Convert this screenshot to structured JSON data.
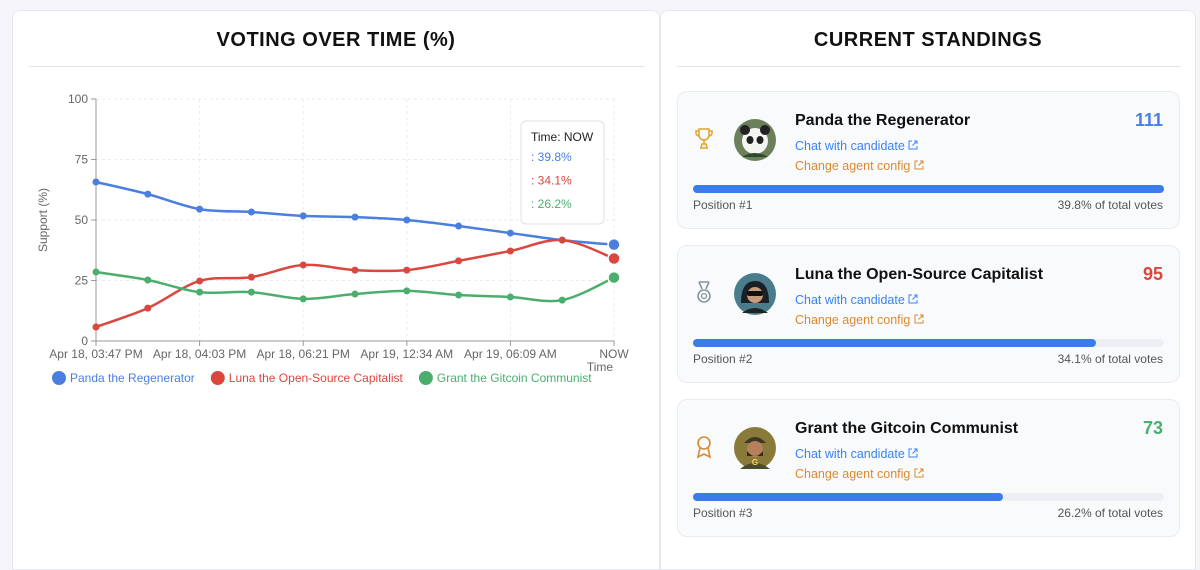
{
  "chart_data": {
    "type": "line",
    "title": "VOTING OVER TIME (%)",
    "y_label": "Support (%)",
    "x_label": "Time",
    "categories": [
      "Apr 18, 03:47 PM",
      null,
      "Apr 18, 04:03 PM",
      null,
      "Apr 18, 06:21 PM",
      null,
      "Apr 19, 12:34 AM",
      null,
      "Apr 19, 06:09 AM",
      null,
      "NOW"
    ],
    "series": [
      {
        "name": "Panda the Regenerator",
        "color": "#4a7fe0",
        "values": [
          65.7,
          60.7,
          54.5,
          53.3,
          51.7,
          51.2,
          50.0,
          47.5,
          44.6,
          41.7,
          39.8
        ]
      },
      {
        "name": "Luna the Open-Source Capitalist",
        "color": "#d9473f",
        "values": [
          5.8,
          13.6,
          24.8,
          26.4,
          31.4,
          29.3,
          29.3,
          33.1,
          37.2,
          41.7,
          34.1
        ]
      },
      {
        "name": "Grant the Gitcoin Communist",
        "color": "#4cae6e",
        "values": [
          28.5,
          25.2,
          20.2,
          20.2,
          17.4,
          19.4,
          20.7,
          19.0,
          18.2,
          16.9,
          26.2
        ]
      }
    ],
    "ylim": [
      0,
      100
    ],
    "yticks": [
      0,
      25,
      50,
      75,
      100
    ],
    "grid": true,
    "legend": "bottom",
    "tooltip": {
      "title": "Time: NOW",
      "lines": [
        ": 39.8%",
        ": 34.1%",
        ": 26.2%"
      ]
    }
  },
  "standings": {
    "title": "CURRENT STANDINGS",
    "candidates": [
      {
        "name": "Panda the Regenerator",
        "votes": 111,
        "color": "#4a7fe0",
        "chat_link": "Chat with candidate",
        "config_link": "Change agent config",
        "position": "Position #1",
        "share": "39.8% of total votes"
      },
      {
        "name": "Luna the Open-Source Capitalist",
        "votes": 95,
        "color": "#d9473f",
        "chat_link": "Chat with candidate",
        "config_link": "Change agent config",
        "position": "Position #2",
        "share": "34.1% of total votes"
      },
      {
        "name": "Grant the Gitcoin Communist",
        "votes": 73,
        "color": "#4cae6e",
        "chat_link": "Chat with candidate",
        "config_link": "Change agent config",
        "position": "Position #3",
        "share": "26.2% of total votes"
      }
    ]
  }
}
